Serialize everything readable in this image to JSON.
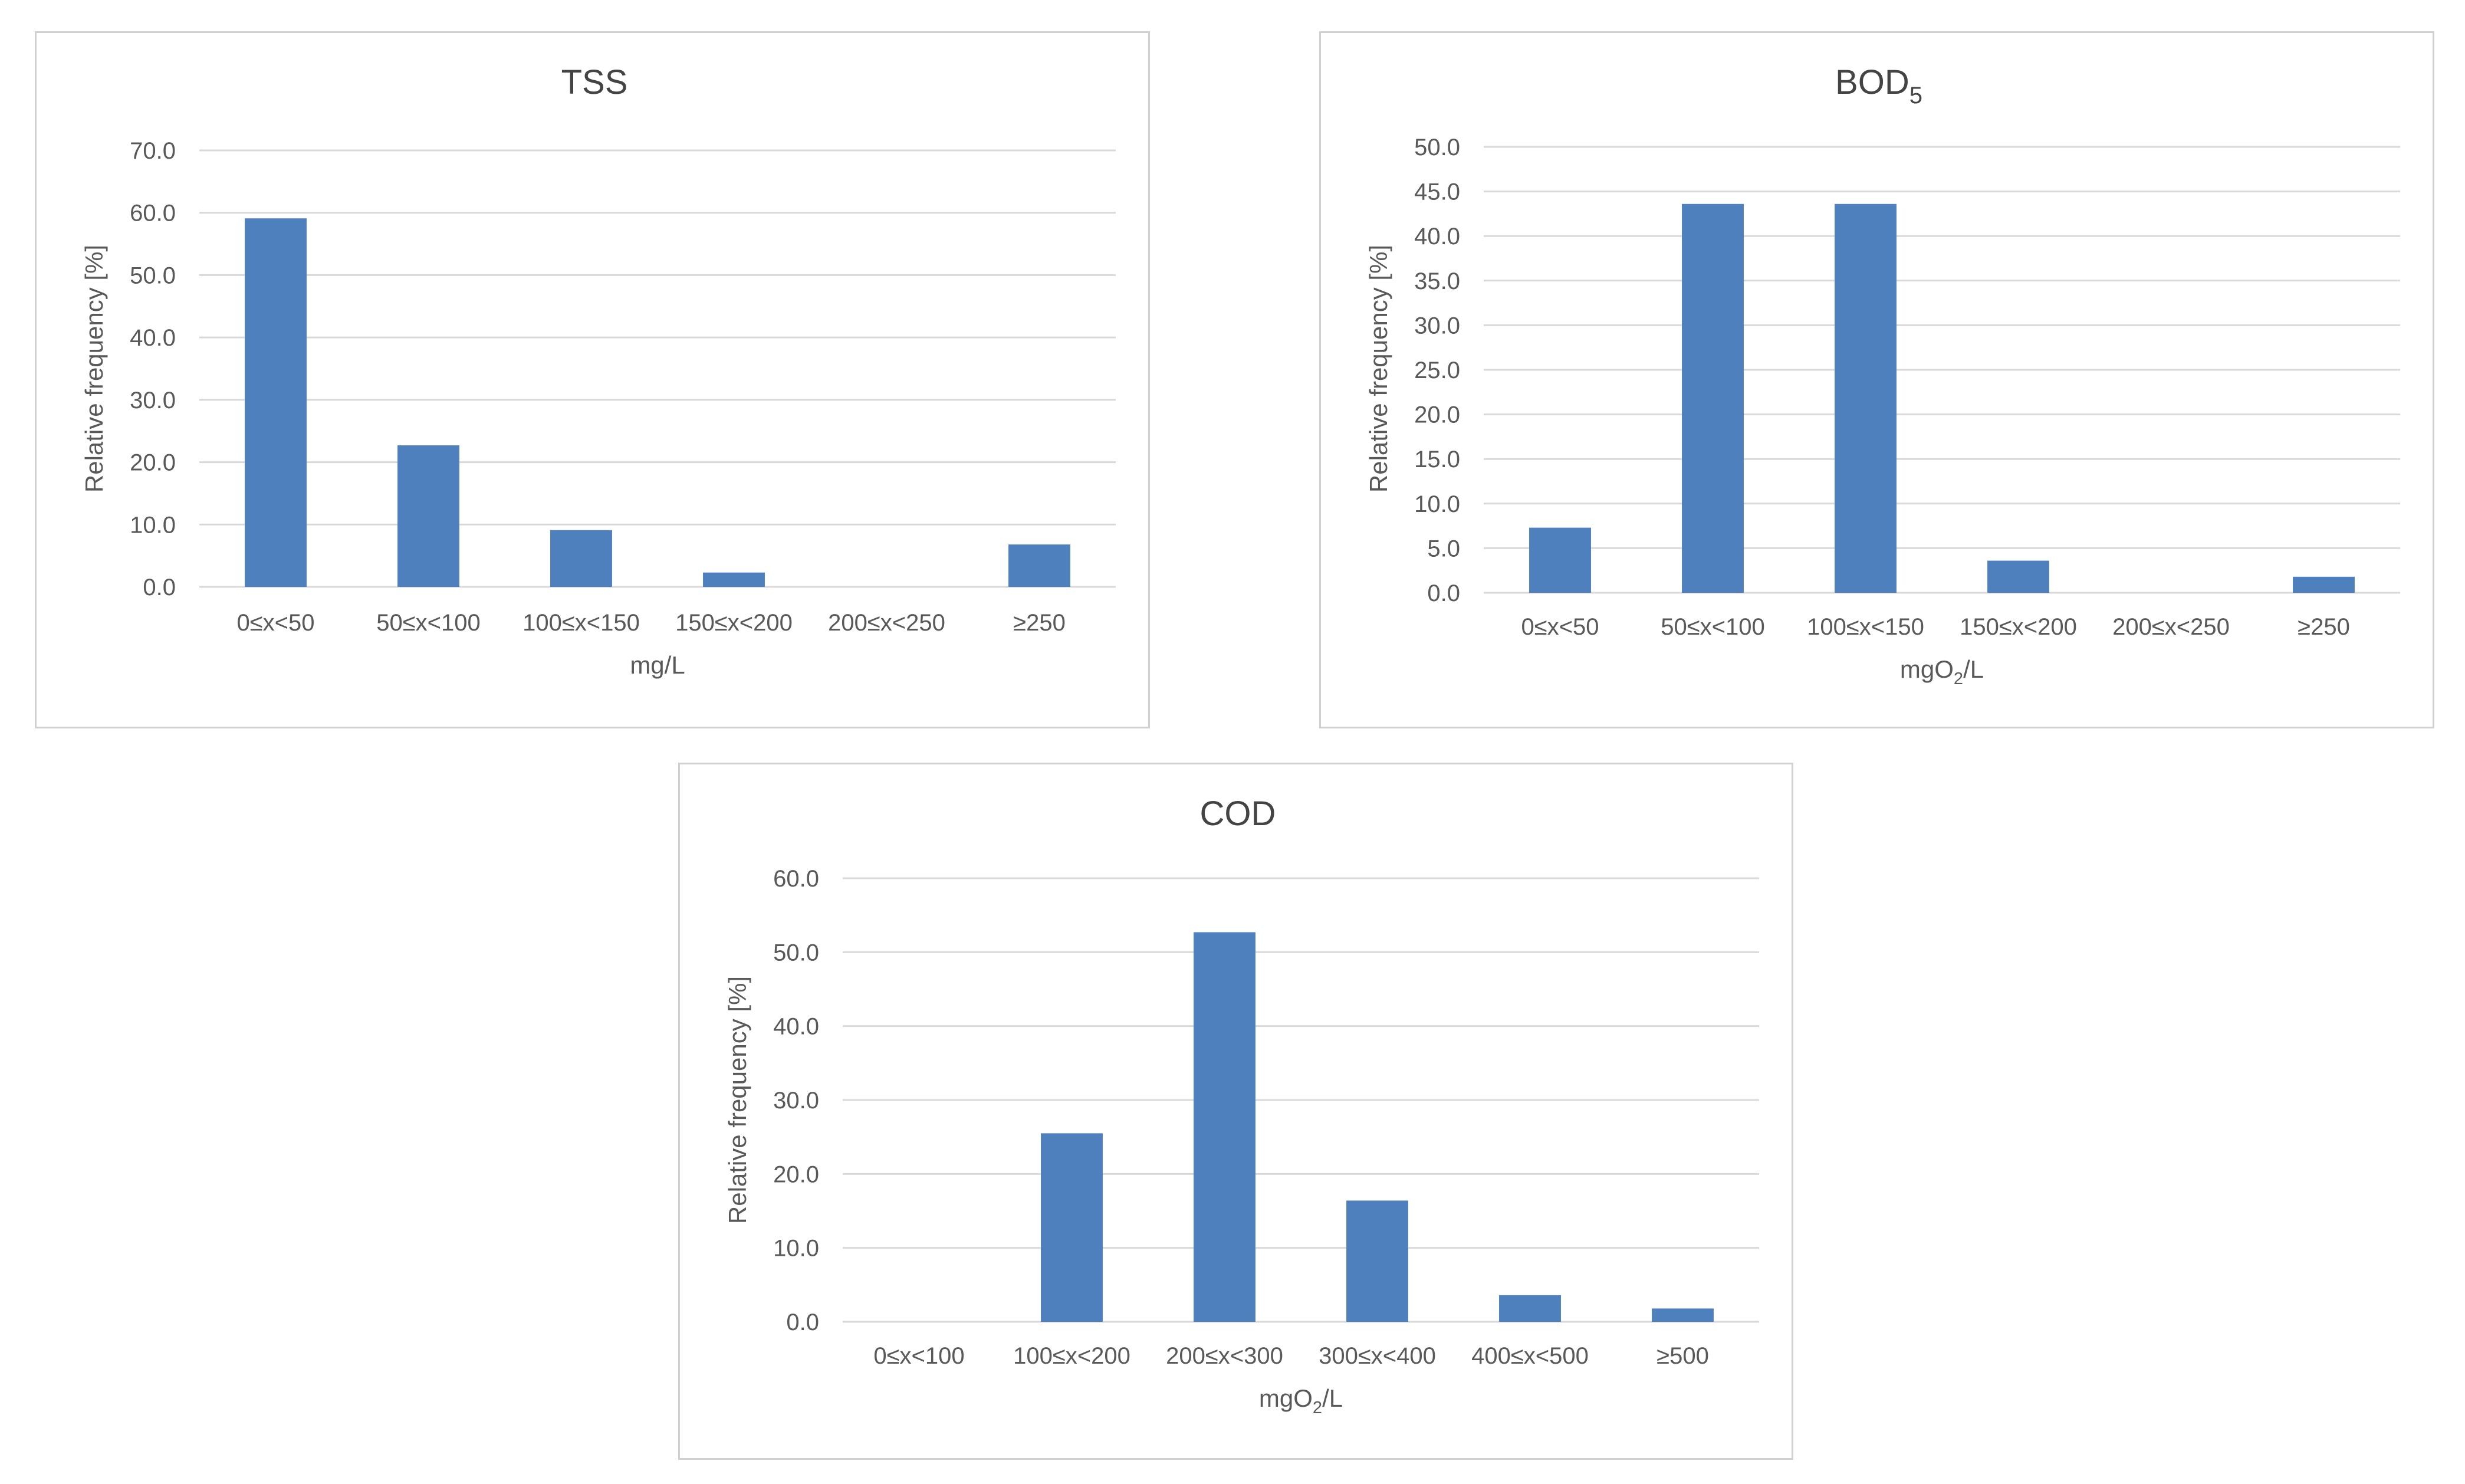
{
  "chart_data": [
    {
      "type": "bar",
      "title": "TSS",
      "title_subscript": "",
      "xlabel": "mg/L",
      "xlabel_subscript": "",
      "xlabel_suffix": "",
      "ylabel": "Relative frequency [%]",
      "categories": [
        "0≤x<50",
        "50≤x<100",
        "100≤x<150",
        "150≤x<200",
        "200≤x<250",
        "≥250"
      ],
      "values": [
        59.1,
        22.7,
        9.1,
        2.3,
        0.0,
        6.8
      ],
      "ylim": [
        0,
        70
      ],
      "ytick_step": 10,
      "ytick_labels": [
        "0.0",
        "10.0",
        "20.0",
        "30.0",
        "40.0",
        "50.0",
        "60.0",
        "70.0"
      ],
      "grid": true,
      "legend": "none",
      "color": "#4e80bd"
    },
    {
      "type": "bar",
      "title": "BOD",
      "title_subscript": "5",
      "xlabel": "mgO",
      "xlabel_subscript": "2",
      "xlabel_suffix": "/L",
      "ylabel": "Relative frequency [%]",
      "categories": [
        "0≤x<50",
        "50≤x<100",
        "100≤x<150",
        "150≤x<200",
        "200≤x<250",
        "≥250"
      ],
      "values": [
        7.3,
        43.6,
        43.6,
        3.6,
        0.0,
        1.8
      ],
      "ylim": [
        0,
        50
      ],
      "ytick_step": 5,
      "ytick_labels": [
        "0.0",
        "5.0",
        "10.0",
        "15.0",
        "20.0",
        "25.0",
        "30.0",
        "35.0",
        "40.0",
        "45.0",
        "50.0"
      ],
      "grid": true,
      "legend": "none",
      "color": "#4e80bd"
    },
    {
      "type": "bar",
      "title": "COD",
      "title_subscript": "",
      "xlabel": "mgO",
      "xlabel_subscript": "2",
      "xlabel_suffix": "/L",
      "ylabel": "Relative frequency [%]",
      "categories": [
        "0≤x<100",
        "100≤x<200",
        "200≤x<300",
        "300≤x<400",
        "400≤x<500",
        "≥500"
      ],
      "values": [
        0.0,
        25.5,
        52.7,
        16.4,
        3.6,
        1.8
      ],
      "ylim": [
        0,
        60
      ],
      "ytick_step": 10,
      "ytick_labels": [
        "0.0",
        "10.0",
        "20.0",
        "30.0",
        "40.0",
        "50.0",
        "60.0"
      ],
      "grid": true,
      "legend": "none",
      "color": "#4e80bd"
    }
  ]
}
